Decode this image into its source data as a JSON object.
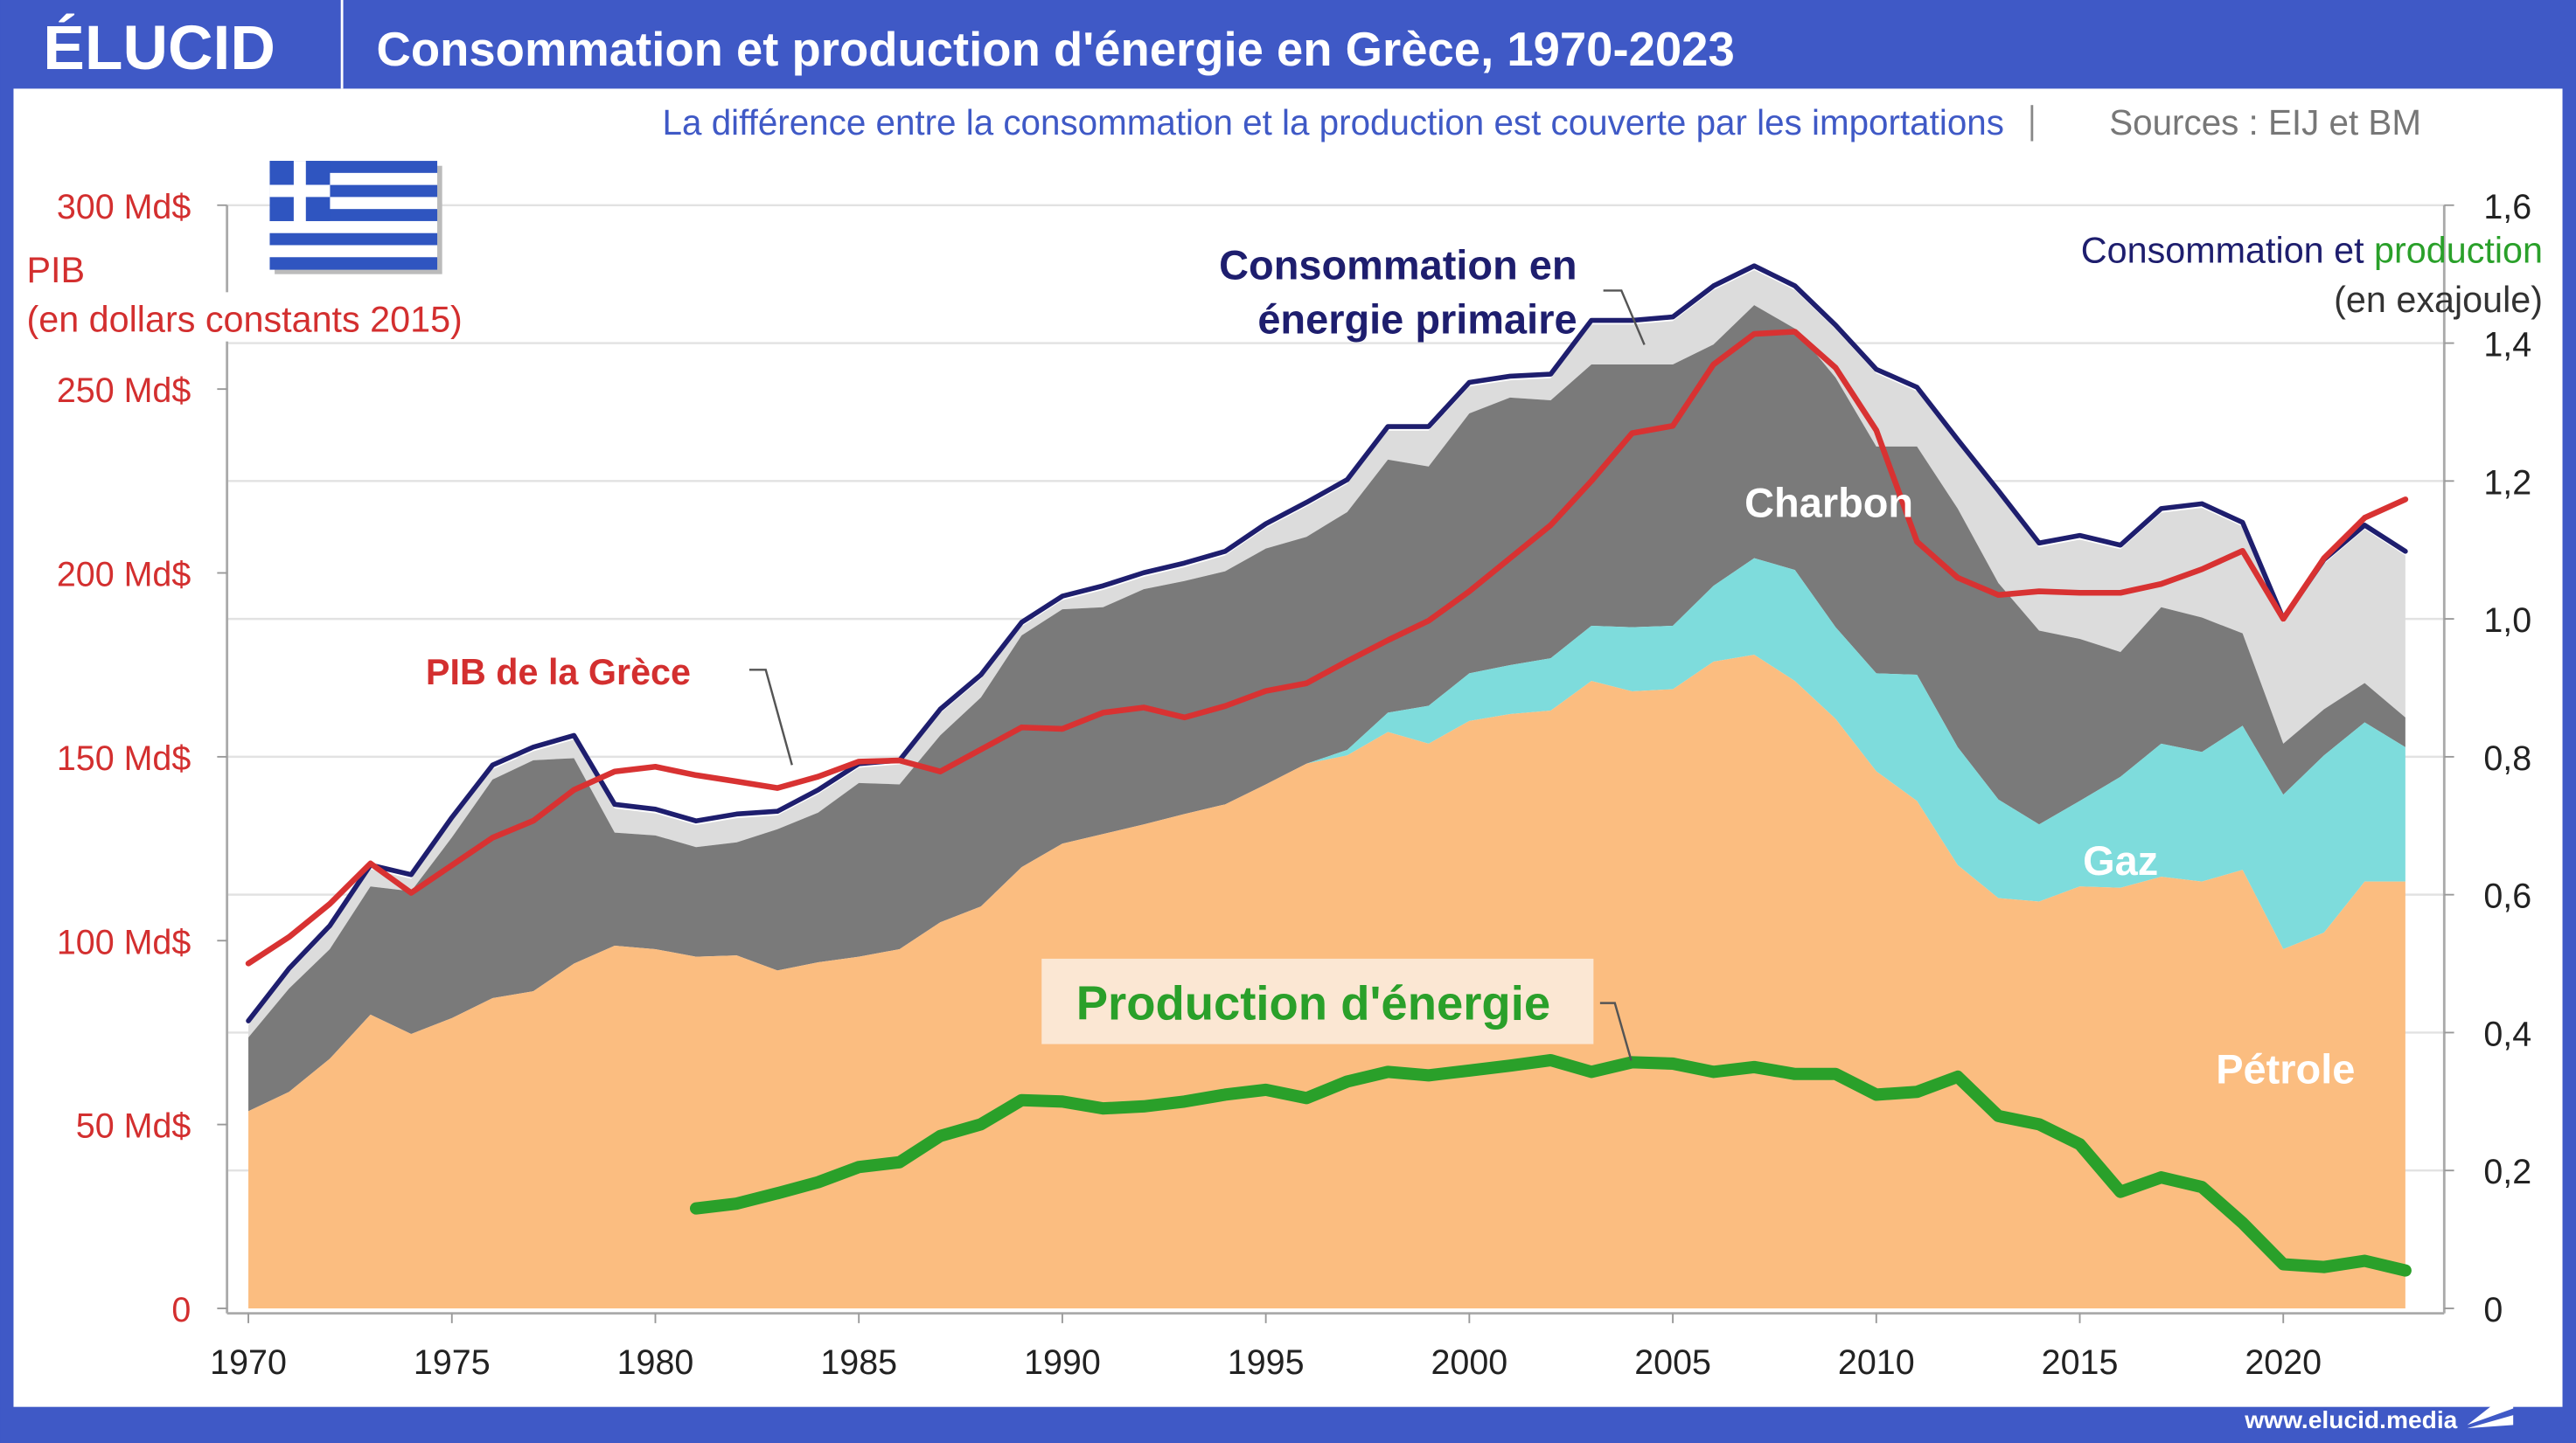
{
  "header": {
    "logo": "ÉLUCID",
    "title": "Consommation et production d'énergie en Grèce, 1970-2023",
    "subtitle": "La différence entre la consommation et la production est couverte par les importations",
    "sources": "Sources : EIJ et BM",
    "footer_url": "www.elucid.media"
  },
  "colors": {
    "frame": "#3f59c6",
    "petrole": "#fbbd80",
    "gaz": "#7edcdc",
    "charbon": "#7a7a7a",
    "autres": "#dcdcdc",
    "consommation": "#1e1e6e",
    "pib": "#d83232",
    "production": "#2aa02a"
  },
  "chart_data": {
    "type": "area",
    "title": "Consommation et production d'énergie en Grèce, 1970-2023",
    "left_axis": {
      "label_line1": "PIB",
      "label_line2": "(en dollars constants 2015)",
      "ylim": [
        0,
        300
      ],
      "ticks": [
        "0",
        "50 Md$",
        "100 Md$",
        "150 Md$",
        "200 Md$",
        "250 Md$",
        "300 Md$"
      ]
    },
    "right_axis": {
      "label_prefix": "Consommation et ",
      "label_highlight": "production",
      "label_unit": "(en exajoule)",
      "ylim": [
        0,
        1.6
      ],
      "ticks": [
        "0",
        "0,2",
        "0,4",
        "0,6",
        "0,8",
        "1,0",
        "1,2",
        "1,4",
        "1,6"
      ]
    },
    "x_ticks": [
      "1970",
      "1975",
      "1980",
      "1985",
      "1990",
      "1995",
      "2000",
      "2005",
      "2010",
      "2015",
      "2020"
    ],
    "grid": true,
    "years_start": 1970,
    "annotations": {
      "consommation_line1": "Consommation en",
      "consommation_line2": "énergie primaire",
      "pib": "PIB de la Grèce",
      "charbon": "Charbon",
      "gaz": "Gaz",
      "petrole": "Pétrole",
      "production": "Production d'énergie"
    },
    "series": {
      "petrole": [
        0.286,
        0.314,
        0.362,
        0.426,
        0.398,
        0.421,
        0.45,
        0.46,
        0.5,
        0.526,
        0.521,
        0.51,
        0.512,
        0.49,
        0.502,
        0.51,
        0.521,
        0.56,
        0.583,
        0.64,
        0.674,
        0.688,
        0.702,
        0.717,
        0.731,
        0.76,
        0.79,
        0.802,
        0.836,
        0.819,
        0.852,
        0.862,
        0.867,
        0.91,
        0.895,
        0.898,
        0.938,
        0.948,
        0.91,
        0.855,
        0.779,
        0.736,
        0.643,
        0.595,
        0.59,
        0.612,
        0.61,
        0.626,
        0.619,
        0.636,
        0.521,
        0.545,
        0.619,
        0.619
      ],
      "gaz": [
        0,
        0,
        0,
        0,
        0,
        0,
        0,
        0,
        0,
        0,
        0,
        0,
        0,
        0,
        0,
        0,
        0,
        0,
        0,
        0,
        0,
        0,
        0,
        0,
        0,
        0,
        0,
        0.008,
        0.028,
        0.055,
        0.069,
        0.071,
        0.076,
        0.08,
        0.093,
        0.092,
        0.11,
        0.14,
        0.161,
        0.133,
        0.142,
        0.183,
        0.171,
        0.143,
        0.112,
        0.124,
        0.161,
        0.193,
        0.188,
        0.209,
        0.224,
        0.257,
        0.231,
        0.195
      ],
      "charbon": [
        0.107,
        0.15,
        0.159,
        0.186,
        0.207,
        0.262,
        0.317,
        0.335,
        0.298,
        0.164,
        0.165,
        0.159,
        0.164,
        0.205,
        0.217,
        0.252,
        0.239,
        0.271,
        0.303,
        0.336,
        0.34,
        0.329,
        0.341,
        0.338,
        0.338,
        0.342,
        0.329,
        0.345,
        0.367,
        0.347,
        0.377,
        0.388,
        0.374,
        0.379,
        0.381,
        0.379,
        0.35,
        0.367,
        0.35,
        0.362,
        0.329,
        0.331,
        0.346,
        0.314,
        0.281,
        0.235,
        0.181,
        0.198,
        0.195,
        0.134,
        0.074,
        0.067,
        0.057,
        0.043
      ],
      "consommation_totale": [
        0.417,
        0.493,
        0.555,
        0.643,
        0.629,
        0.712,
        0.788,
        0.814,
        0.831,
        0.731,
        0.724,
        0.707,
        0.717,
        0.721,
        0.752,
        0.79,
        0.795,
        0.869,
        0.919,
        0.995,
        1.033,
        1.048,
        1.067,
        1.081,
        1.098,
        1.138,
        1.169,
        1.202,
        1.279,
        1.279,
        1.343,
        1.352,
        1.355,
        1.433,
        1.433,
        1.438,
        1.483,
        1.512,
        1.483,
        1.426,
        1.362,
        1.336,
        1.26,
        1.186,
        1.11,
        1.121,
        1.107,
        1.16,
        1.167,
        1.14,
        1.0,
        1.086,
        1.136,
        1.098
      ],
      "pib_md_dollars": [
        93.8,
        101,
        110,
        121,
        113,
        120.5,
        128,
        132.6,
        141,
        146,
        147.3,
        145,
        143.3,
        141.5,
        144.6,
        148.7,
        149,
        146,
        152,
        158,
        157.6,
        162,
        163.4,
        160.7,
        163.8,
        167.9,
        170,
        176,
        181.7,
        187,
        195,
        204,
        213,
        225,
        238,
        240,
        256.7,
        265,
        265.6,
        255.8,
        238.8,
        208.5,
        198.7,
        194,
        195,
        194.6,
        194.6,
        197,
        201,
        206,
        187.5,
        204,
        215,
        220
      ],
      "production_start_year": 1981,
      "production": [
        0.145,
        0.152,
        0.167,
        0.183,
        0.205,
        0.212,
        0.25,
        0.267,
        0.302,
        0.3,
        0.29,
        0.293,
        0.3,
        0.31,
        0.317,
        0.305,
        0.329,
        0.343,
        0.338,
        0.345,
        0.352,
        0.36,
        0.343,
        0.357,
        0.355,
        0.343,
        0.35,
        0.34,
        0.34,
        0.31,
        0.314,
        0.336,
        0.279,
        0.267,
        0.238,
        0.169,
        0.19,
        0.176,
        0.124,
        0.064,
        0.06,
        0.069,
        0.055
      ]
    }
  }
}
